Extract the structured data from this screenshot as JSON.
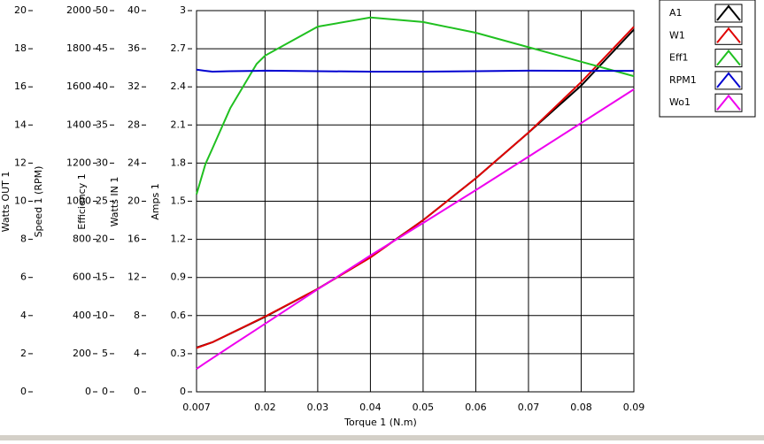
{
  "chart_data": {
    "type": "line",
    "x_label": "Torque 1 (N.m)",
    "x": [
      0.007,
      0.0087,
      0.01,
      0.0134,
      0.0184,
      0.02,
      0.03,
      0.04,
      0.05,
      0.06,
      0.07,
      0.08,
      0.09
    ],
    "xlim": [
      0.007,
      0.09
    ],
    "xticks": [
      0.007,
      0.02,
      0.03,
      0.04,
      0.05,
      0.06,
      0.07,
      0.08,
      0.09
    ],
    "grid": true,
    "y_axes": [
      {
        "label": "Watts OUT 1",
        "lim": [
          0,
          20
        ],
        "ticks": [
          0,
          2,
          4,
          6,
          8,
          10,
          12,
          14,
          16,
          18,
          20
        ]
      },
      {
        "label": "Speed 1 (RPM)",
        "lim": [
          0,
          2000
        ],
        "ticks": [
          0,
          200,
          400,
          600,
          800,
          1000,
          1200,
          1400,
          1600,
          1800,
          2000
        ]
      },
      {
        "label": "Efficiency 1",
        "lim": [
          0,
          50
        ],
        "ticks": [
          0,
          5,
          10,
          15,
          20,
          25,
          30,
          35,
          40,
          45,
          50
        ]
      },
      {
        "label": "Watts IN 1",
        "lim": [
          0,
          40
        ],
        "ticks": [
          0,
          4,
          8,
          12,
          16,
          20,
          24,
          28,
          32,
          36,
          40
        ]
      },
      {
        "label": "Amps 1",
        "lim": [
          0,
          3
        ],
        "ticks": [
          0,
          0.3,
          0.6,
          0.9,
          1.2,
          1.5,
          1.8,
          2.1,
          2.4,
          2.7,
          3
        ]
      }
    ],
    "series": [
      {
        "name": "A1",
        "color": "#000000",
        "axis": 4,
        "values": [
          0.348,
          0.372,
          0.39,
          0.458,
          0.558,
          0.59,
          0.81,
          1.06,
          1.35,
          1.68,
          2.04,
          2.41,
          2.85
        ]
      },
      {
        "name": "W1",
        "color": "#e00000",
        "axis": 3,
        "values": [
          4.6,
          4.94,
          5.2,
          6.12,
          7.47,
          7.9,
          10.8,
          14.1,
          18.0,
          22.4,
          27.2,
          32.5,
          38.3
        ]
      },
      {
        "name": "Eff1",
        "color": "#20c020",
        "axis": 2,
        "values": [
          25.9,
          29.9,
          31.9,
          37.2,
          43.0,
          44.1,
          47.9,
          49.1,
          48.5,
          47.1,
          45.2,
          43.3,
          41.4
        ]
      },
      {
        "name": "RPM1",
        "color": "#0000d0",
        "axis": 1,
        "values": [
          1690,
          1684,
          1680,
          1682,
          1684,
          1685,
          1682,
          1680,
          1680,
          1682,
          1685,
          1684,
          1684
        ]
      },
      {
        "name": "Wo1",
        "color": "#ee00ee",
        "axis": 0,
        "values": [
          1.2,
          1.52,
          1.76,
          2.38,
          3.28,
          3.57,
          5.38,
          7.15,
          8.86,
          10.58,
          12.34,
          14.1,
          15.87
        ]
      }
    ]
  }
}
